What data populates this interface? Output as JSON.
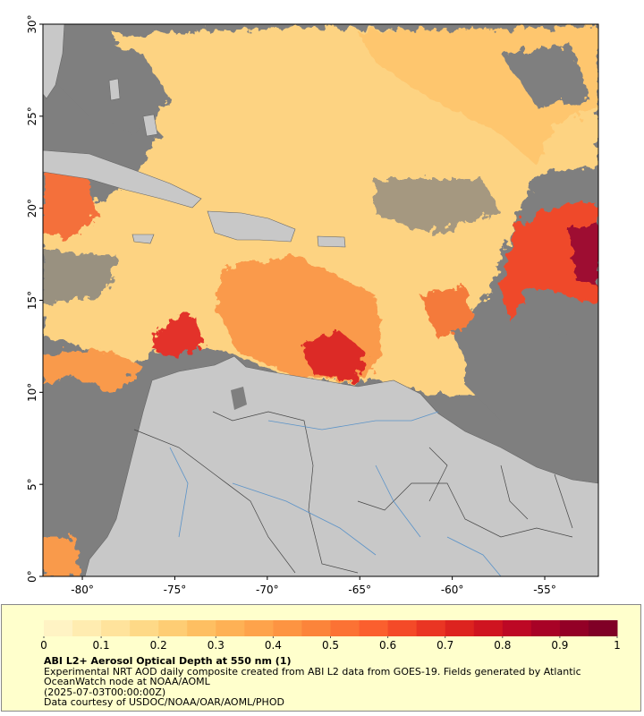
{
  "map": {
    "xlim": [
      -82.13,
      -52.1
    ],
    "ylim": [
      0,
      30
    ],
    "xticks": [
      {
        "value": -80,
        "label": "-80°"
      },
      {
        "value": -75,
        "label": "-75°"
      },
      {
        "value": -70,
        "label": "-70°"
      },
      {
        "value": -65,
        "label": "-65°"
      },
      {
        "value": -60,
        "label": "-60°"
      },
      {
        "value": -55,
        "label": "-55°"
      }
    ],
    "yticks": [
      {
        "value": 0,
        "label": "0°"
      },
      {
        "value": 5,
        "label": "5°"
      },
      {
        "value": 10,
        "label": "10°"
      },
      {
        "value": 15,
        "label": "15°"
      },
      {
        "value": 20,
        "label": "20°"
      },
      {
        "value": 25,
        "label": "25°"
      },
      {
        "value": 30,
        "label": "30°"
      }
    ]
  },
  "colorbar": {
    "range": [
      0,
      1
    ],
    "ticks": [
      0,
      0.1,
      0.2,
      0.3,
      0.4,
      0.5,
      0.6,
      0.7,
      0.8,
      0.9,
      1
    ],
    "colors": [
      "#fff3c4",
      "#ffecb0",
      "#ffe39c",
      "#fed987",
      "#fecd74",
      "#febf62",
      "#feb155",
      "#fea34b",
      "#fd9442",
      "#fc843a",
      "#fc7234",
      "#fb5f2e",
      "#f44a28",
      "#ea3523",
      "#dd231f",
      "#cf1420",
      "#bd0825",
      "#a80226",
      "#930026",
      "#800026"
    ]
  },
  "caption": {
    "title": "ABI L2+ Aerosol Optical Depth at 550 nm (1)",
    "lines": [
      "Experimental NRT AOD daily composite created from ABI L2 data from GOES-19. Fields generated by Atlantic OceanWatch node at NOAA/AOML",
      "(2025-07-03T00:00:00Z)",
      "Data courtesy of USDOC/NOAA/OAR/AOML/PHOD"
    ]
  }
}
